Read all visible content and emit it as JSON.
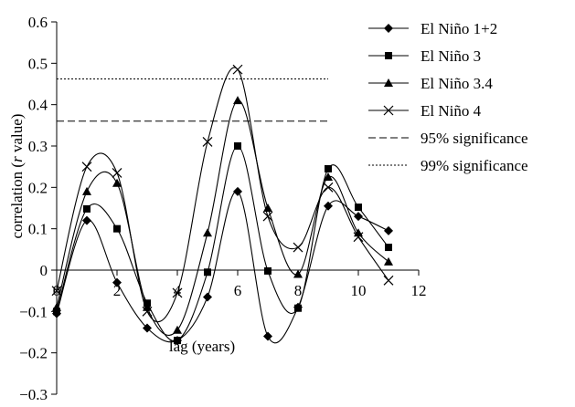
{
  "chart_data": {
    "type": "line",
    "title": "",
    "xlabel": "lag (years)",
    "ylabel_parts": [
      "correlation (",
      "r",
      " value)"
    ],
    "xlim": [
      0,
      12
    ],
    "ylim": [
      -0.3,
      0.6
    ],
    "x_ticks": [
      {
        "value": 0,
        "label": "0"
      },
      {
        "value": 2,
        "label": "2"
      },
      {
        "value": 4,
        "label": "4"
      },
      {
        "value": 6,
        "label": "6"
      },
      {
        "value": 8,
        "label": "8"
      },
      {
        "value": 10,
        "label": "10"
      },
      {
        "value": 12,
        "label": "12"
      }
    ],
    "y_ticks": [
      {
        "value": 0.6,
        "label": "0.6"
      },
      {
        "value": 0.5,
        "label": "0.5"
      },
      {
        "value": 0.4,
        "label": "0.4"
      },
      {
        "value": 0.3,
        "label": "0.3"
      },
      {
        "value": 0.2,
        "label": "0.2"
      },
      {
        "value": 0.1,
        "label": "0.1"
      },
      {
        "value": 0,
        "label": "0"
      },
      {
        "value": -0.1,
        "label": "−0.1"
      },
      {
        "value": -0.2,
        "label": "−0.2"
      },
      {
        "value": -0.3,
        "label": "−0.3"
      }
    ],
    "grid": false,
    "legend_position": "right",
    "x": [
      0,
      1,
      2,
      3,
      4,
      5,
      6,
      7,
      8,
      9,
      10,
      11
    ],
    "series": [
      {
        "name": "El Niño 1+2",
        "marker": "diamond",
        "values": [
          -0.105,
          0.12,
          -0.03,
          -0.14,
          -0.17,
          -0.065,
          0.19,
          -0.16,
          -0.09,
          0.155,
          0.13,
          0.095
        ]
      },
      {
        "name": "El Niño 3",
        "marker": "square",
        "values": [
          -0.1,
          0.148,
          0.1,
          -0.08,
          -0.17,
          -0.005,
          0.3,
          -0.002,
          -0.092,
          0.245,
          0.152,
          0.055
        ]
      },
      {
        "name": "El Niño 3.4",
        "marker": "triangle",
        "values": [
          -0.09,
          0.19,
          0.21,
          -0.09,
          -0.145,
          0.09,
          0.41,
          0.15,
          -0.01,
          0.225,
          0.09,
          0.02
        ]
      },
      {
        "name": "El Niño 4",
        "marker": "x",
        "values": [
          -0.05,
          0.25,
          0.235,
          -0.1,
          -0.055,
          0.31,
          0.485,
          0.13,
          0.055,
          0.2,
          0.08,
          -0.025
        ]
      }
    ],
    "reference_lines": [
      {
        "name": "95% significance",
        "value": 0.36,
        "style": "dashed",
        "x_range": [
          0,
          9
        ]
      },
      {
        "name": "99% significance",
        "value": 0.462,
        "style": "dotted",
        "x_range": [
          0,
          9
        ]
      }
    ],
    "line_color": "#000000"
  }
}
